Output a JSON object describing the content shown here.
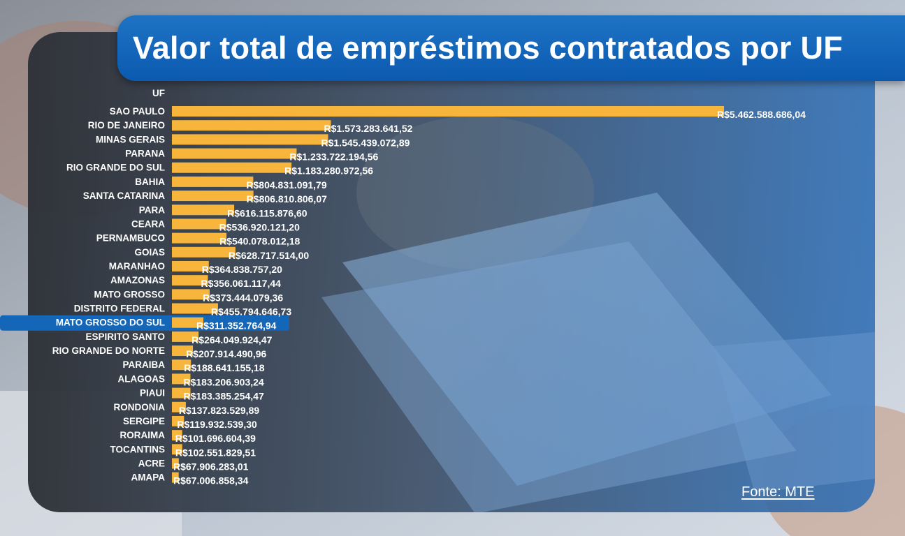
{
  "title": "Valor total de empréstimos contratados por UF",
  "source": "Fonte: MTE",
  "colors": {
    "bar": "#f7b53b",
    "banner": "#0e5fb3",
    "highlight": "#1466b8",
    "text": "#ffffff"
  },
  "chart_data": {
    "type": "bar",
    "orientation": "horizontal",
    "title": "Valor total de empréstimos contratados por UF",
    "category_axis_label": "UF",
    "highlighted_category": "MATO GROSSO DO SUL",
    "categories": [
      "SAO PAULO",
      "RIO DE JANEIRO",
      "MINAS GERAIS",
      "PARANA",
      "RIO GRANDE DO SUL",
      "BAHIA",
      "SANTA CATARINA",
      "PARA",
      "CEARA",
      "PERNAMBUCO",
      "GOIAS",
      "MARANHAO",
      "AMAZONAS",
      "MATO GROSSO",
      "DISTRITO FEDERAL",
      "MATO GROSSO DO SUL",
      "ESPIRITO SANTO",
      "RIO GRANDE DO NORTE",
      "PARAIBA",
      "ALAGOAS",
      "PIAUI",
      "RONDONIA",
      "SERGIPE",
      "RORAIMA",
      "TOCANTINS",
      "ACRE",
      "AMAPA"
    ],
    "values": [
      5462588686.04,
      1573283641.52,
      1545439072.89,
      1233722194.56,
      1183280972.56,
      804831091.79,
      806810806.07,
      616115876.6,
      536920121.2,
      540078012.18,
      628717514.0,
      364838757.2,
      356061117.44,
      373444079.36,
      455794646.73,
      311352764.94,
      264049924.47,
      207914490.96,
      188641155.18,
      183206903.24,
      183385254.47,
      137823529.89,
      119932539.3,
      101696604.39,
      102551829.51,
      67906283.01,
      67006858.34
    ],
    "value_labels": [
      "R$5.462.588.686,04",
      "R$1.573.283.641,52",
      "R$1.545.439.072,89",
      "R$1.233.722.194,56",
      "R$1.183.280.972,56",
      "R$804.831.091,79",
      "R$806.810.806,07",
      "R$616.115.876,60",
      "R$536.920.121,20",
      "R$540.078.012,18",
      "R$628.717.514,00",
      "R$364.838.757,20",
      "R$356.061.117,44",
      "R$373.444.079,36",
      "R$455.794.646,73",
      "R$311.352.764,94",
      "R$264.049.924,47",
      "R$207.914.490,96",
      "R$188.641.155,18",
      "R$183.206.903,24",
      "R$183.385.254,47",
      "R$137.823.529,89",
      "R$119.932.539,30",
      "R$101.696.604,39",
      "R$102.551.829,51",
      "R$67.906.283,01",
      "R$67.006.858,34"
    ],
    "grid": false,
    "legend": "none"
  }
}
